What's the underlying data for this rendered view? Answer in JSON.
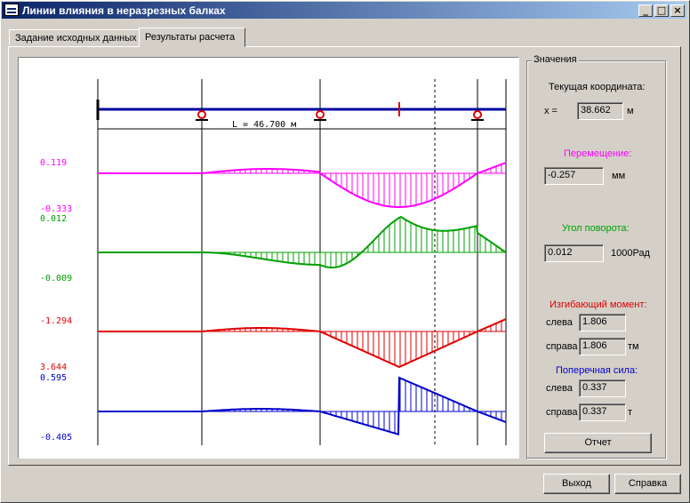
{
  "window": {
    "title": "Линии влияния в неразрезных балках"
  },
  "tabs": [
    {
      "label": "Задание исходных данных",
      "active": false
    },
    {
      "label": "Результаты расчета",
      "active": true
    }
  ],
  "plot": {
    "beam_length_label": "L = 46.700 м",
    "colors": {
      "displacement": "#ff00ff",
      "rotation": "#00a000",
      "moment": "#e00000",
      "shear": "#0000cc",
      "beam": "#0000a0"
    },
    "displacement": {
      "max_label": "0.119",
      "min_label": "-0.333"
    },
    "rotation": {
      "max_label": "0.012",
      "min_label": "-0.009"
    },
    "moment": {
      "max_label": "-1.294",
      "min_label": "3.644"
    },
    "shear": {
      "max_label": "0.595",
      "min_label": "-0.405"
    }
  },
  "values": {
    "group_title": "Значения",
    "coordinate": {
      "title": "Текущая координата:",
      "prefix": "x =",
      "value": "38.662",
      "unit": "м"
    },
    "displacement": {
      "title": "Перемещение:",
      "value": "-0.257",
      "unit": "мм"
    },
    "rotation": {
      "title": "Угол поворота:",
      "value": "0.012",
      "unit": "1000Рад"
    },
    "moment": {
      "title": "Изгибающий момент:",
      "left_label": "слева",
      "left_value": "1.806",
      "right_label": "справа",
      "right_value": "1.806",
      "unit": "тм"
    },
    "shear": {
      "title": "Поперечная  сила:",
      "left_label": "слева",
      "left_value": "0.337",
      "right_label": "справа",
      "right_value": "0.337",
      "unit": "т"
    },
    "report_button": "Отчет"
  },
  "footer": {
    "exit_button": "Выход",
    "help_button": "Справка"
  }
}
